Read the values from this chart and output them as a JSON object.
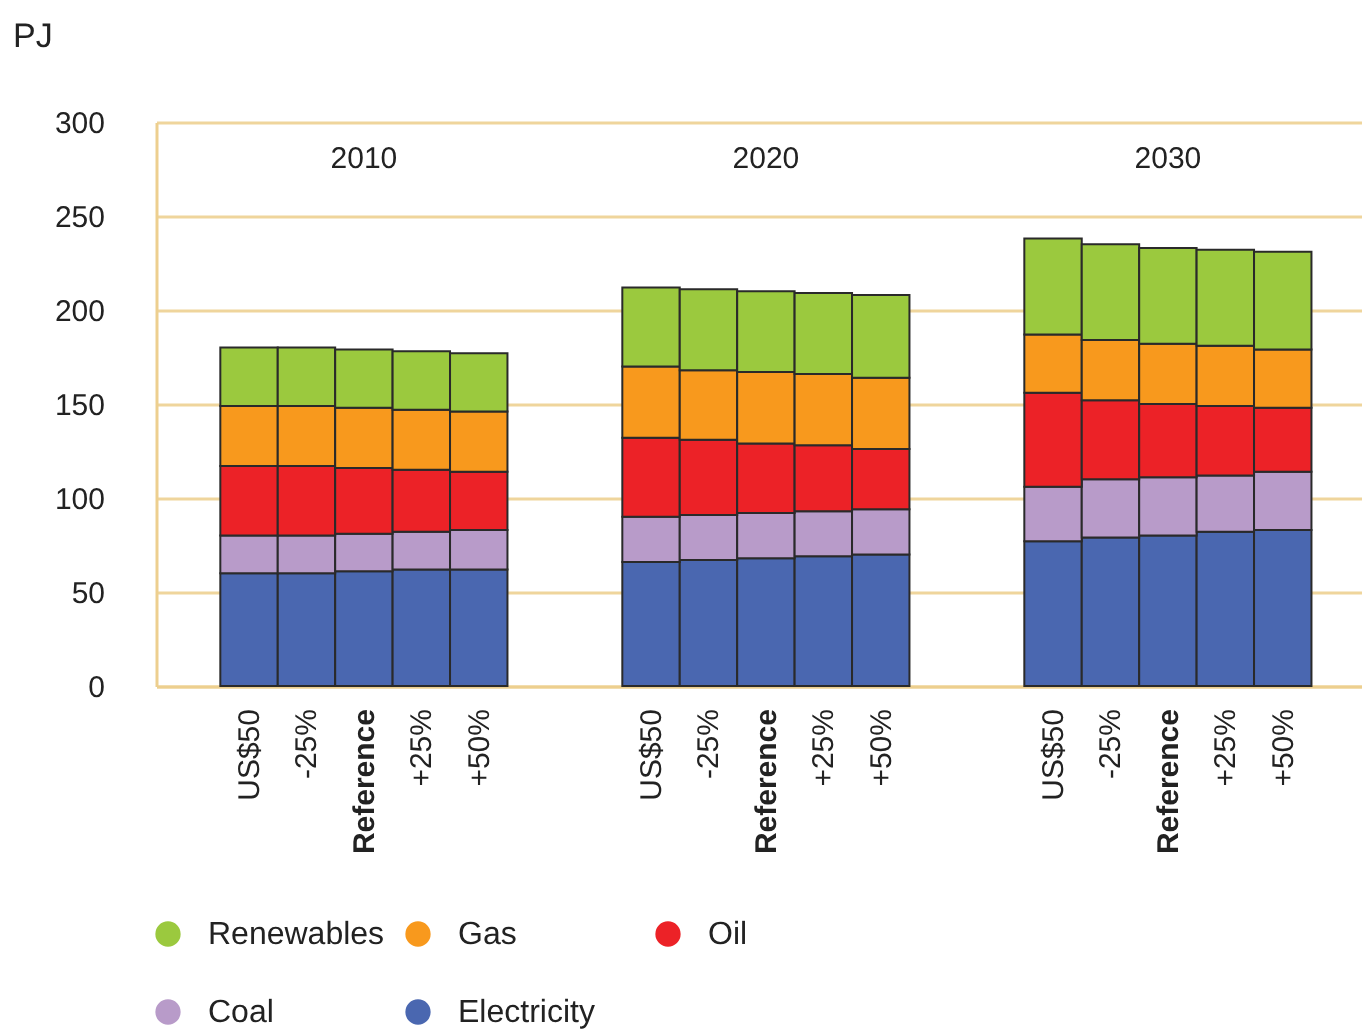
{
  "chart_data": {
    "type": "bar",
    "stacked": true,
    "ylabel": "PJ",
    "categories": [
      "US$50",
      "-25%",
      "Reference",
      "+25%",
      "+50%",
      null,
      null,
      "US$50",
      "-25%",
      "Reference",
      "+25%",
      "+50%",
      null,
      null,
      "US$50",
      "-25%",
      "Reference",
      "+25%",
      "+50%"
    ],
    "series": [
      {
        "name": "Electricity",
        "color": "#4a67b0",
        "values": [
          60,
          60,
          61,
          62,
          62,
          null,
          null,
          66,
          67,
          68,
          69,
          70,
          null,
          null,
          77,
          79,
          80,
          82,
          83
        ]
      },
      {
        "name": "Coal",
        "color": "#b89bc9",
        "values": [
          20,
          20,
          20,
          20,
          21,
          null,
          null,
          24,
          24,
          24,
          24,
          24,
          null,
          null,
          29,
          31,
          31,
          30,
          31
        ]
      },
      {
        "name": "Oil",
        "color": "#ec2227",
        "values": [
          37,
          37,
          35,
          33,
          31,
          null,
          null,
          42,
          40,
          37,
          35,
          32,
          null,
          null,
          50,
          42,
          39,
          37,
          34
        ]
      },
      {
        "name": "Gas",
        "color": "#f8991d",
        "values": [
          32,
          32,
          32,
          32,
          32,
          null,
          null,
          38,
          37,
          38,
          38,
          38,
          null,
          null,
          31,
          32,
          32,
          32,
          31
        ]
      },
      {
        "name": "Renewables",
        "color": "#9bc93e",
        "values": [
          31,
          31,
          31,
          31,
          31,
          null,
          null,
          42,
          43,
          43,
          43,
          44,
          null,
          null,
          51,
          51,
          51,
          51,
          52
        ]
      }
    ],
    "annotations": [
      "2010",
      "2020",
      "2030"
    ],
    "ylim": [
      0,
      300
    ],
    "yticks": [
      0,
      50,
      100,
      150,
      200,
      250,
      300
    ],
    "grid": "y",
    "legend": "bottom"
  }
}
